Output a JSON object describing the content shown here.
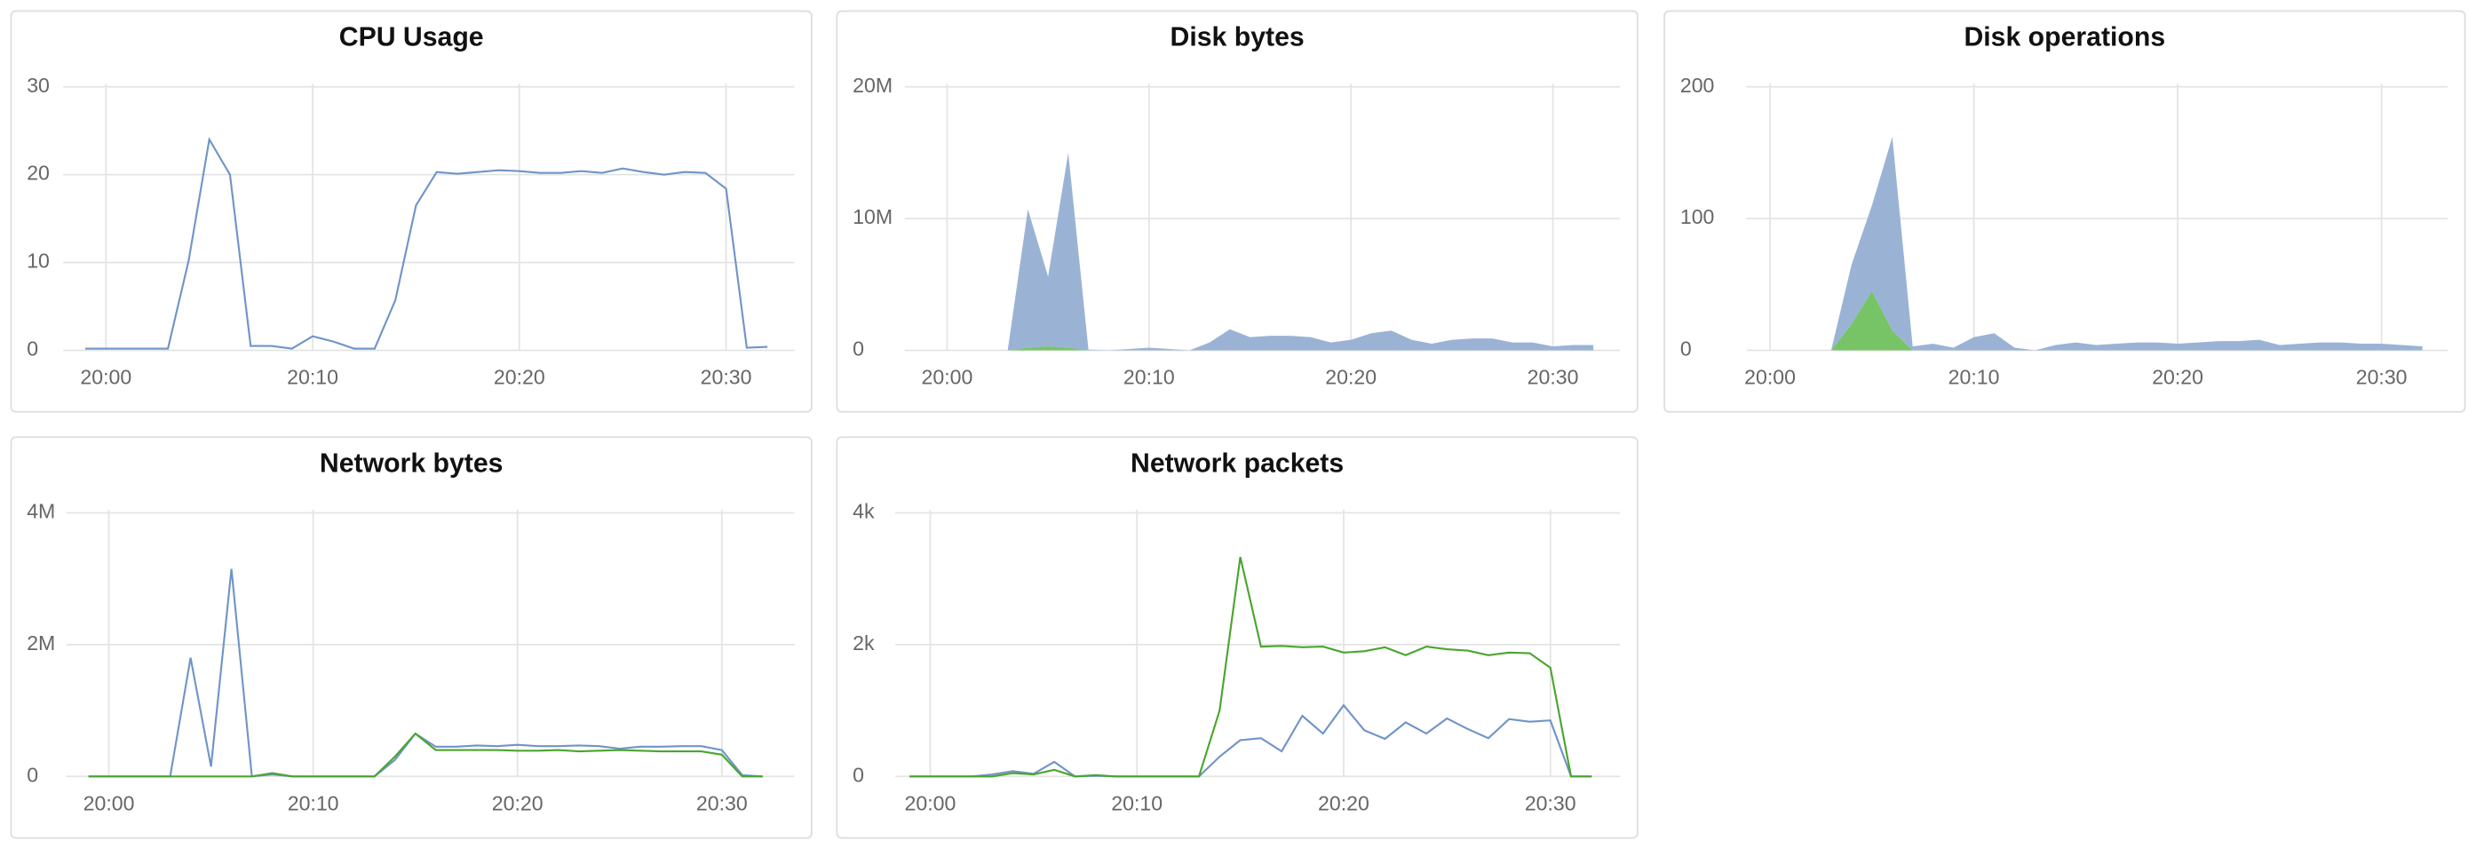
{
  "chart_data": [
    {
      "type": "line",
      "title": "CPU Usage",
      "x": [
        "19:59",
        "20:00",
        "20:01",
        "20:02",
        "20:03",
        "20:04",
        "20:05",
        "20:06",
        "20:07",
        "20:08",
        "20:09",
        "20:10",
        "20:11",
        "20:12",
        "20:13",
        "20:14",
        "20:15",
        "20:16",
        "20:17",
        "20:18",
        "20:19",
        "20:20",
        "20:21",
        "20:22",
        "20:23",
        "20:24",
        "20:25",
        "20:26",
        "20:27",
        "20:28",
        "20:29",
        "20:30",
        "20:31",
        "20:32"
      ],
      "xticks": [
        "20:00",
        "20:10",
        "20:20",
        "20:30"
      ],
      "ylim": [
        0,
        30
      ],
      "yticks": [
        0,
        10,
        20,
        30
      ],
      "grid": true,
      "series": [
        {
          "color": "#7094c8",
          "values": [
            0.2,
            0.2,
            0.2,
            0.2,
            0.2,
            10.2,
            24,
            20,
            0.5,
            0.5,
            0.2,
            1.6,
            1.0,
            0.2,
            0.2,
            5.7,
            16.5,
            20.3,
            20.1,
            20.3,
            20.5,
            20.4,
            20.2,
            20.2,
            20.4,
            20.2,
            20.7,
            20.3,
            20.0,
            20.3,
            20.2,
            18.4,
            0.3,
            0.4
          ]
        }
      ]
    },
    {
      "type": "area",
      "title": "Disk bytes",
      "x": [
        "19:59",
        "20:00",
        "20:01",
        "20:02",
        "20:03",
        "20:04",
        "20:05",
        "20:06",
        "20:07",
        "20:08",
        "20:09",
        "20:10",
        "20:11",
        "20:12",
        "20:13",
        "20:14",
        "20:15",
        "20:16",
        "20:17",
        "20:18",
        "20:19",
        "20:20",
        "20:21",
        "20:22",
        "20:23",
        "20:24",
        "20:25",
        "20:26",
        "20:27",
        "20:28",
        "20:29",
        "20:30",
        "20:31",
        "20:32"
      ],
      "xticks": [
        "20:00",
        "20:10",
        "20:20",
        "20:30"
      ],
      "ylim": [
        0,
        20000000
      ],
      "yticks": [
        0,
        {
          "value": 10000000,
          "label": "10M"
        },
        {
          "value": 20000000,
          "label": "20M"
        }
      ],
      "grid": true,
      "series": [
        {
          "color": "#77c466",
          "values": [
            0,
            0,
            0,
            0,
            0,
            200000,
            300000,
            200000,
            0,
            0,
            0,
            0,
            0,
            0,
            0,
            0,
            0,
            0,
            0,
            0,
            0,
            0,
            0,
            0,
            0,
            0,
            0,
            0,
            0,
            0,
            0,
            0,
            0,
            0
          ]
        },
        {
          "color": "#9ab3d5",
          "values": [
            0,
            0,
            0,
            0,
            0,
            10500000,
            5300000,
            14800000,
            50000,
            0,
            100000,
            200000,
            100000,
            0,
            600000,
            1600000,
            1000000,
            1100000,
            1100000,
            1000000,
            600000,
            800000,
            1300000,
            1500000,
            800000,
            500000,
            800000,
            900000,
            900000,
            600000,
            600000,
            300000,
            400000,
            400000
          ]
        }
      ]
    },
    {
      "type": "area",
      "title": "Disk operations",
      "x": [
        "19:59",
        "20:00",
        "20:01",
        "20:02",
        "20:03",
        "20:04",
        "20:05",
        "20:06",
        "20:07",
        "20:08",
        "20:09",
        "20:10",
        "20:11",
        "20:12",
        "20:13",
        "20:14",
        "20:15",
        "20:16",
        "20:17",
        "20:18",
        "20:19",
        "20:20",
        "20:21",
        "20:22",
        "20:23",
        "20:24",
        "20:25",
        "20:26",
        "20:27",
        "20:28",
        "20:29",
        "20:30",
        "20:31",
        "20:32"
      ],
      "xticks": [
        "20:00",
        "20:10",
        "20:20",
        "20:30"
      ],
      "ylim": [
        0,
        200
      ],
      "yticks": [
        0,
        100,
        200
      ],
      "grid": true,
      "series": [
        {
          "color": "#77c466",
          "values": [
            0,
            0,
            0,
            0,
            0,
            20,
            45,
            15,
            0,
            0,
            0,
            0,
            0,
            0,
            0,
            0,
            0,
            0,
            0,
            0,
            0,
            0,
            0,
            0,
            0,
            0,
            0,
            0,
            0,
            0,
            0,
            0,
            0,
            0
          ]
        },
        {
          "color": "#9ab3d5",
          "values": [
            0,
            0,
            0,
            0,
            0,
            45,
            65,
            147,
            3,
            5,
            2,
            10,
            13,
            2,
            0,
            4,
            6,
            4,
            5,
            6,
            6,
            5,
            6,
            7,
            7,
            8,
            4,
            5,
            6,
            6,
            5,
            5,
            4,
            3
          ]
        }
      ]
    },
    {
      "type": "line",
      "title": "Network bytes",
      "x": [
        "19:59",
        "20:00",
        "20:01",
        "20:02",
        "20:03",
        "20:04",
        "20:05",
        "20:06",
        "20:07",
        "20:08",
        "20:09",
        "20:10",
        "20:11",
        "20:12",
        "20:13",
        "20:14",
        "20:15",
        "20:16",
        "20:17",
        "20:18",
        "20:19",
        "20:20",
        "20:21",
        "20:22",
        "20:23",
        "20:24",
        "20:25",
        "20:26",
        "20:27",
        "20:28",
        "20:29",
        "20:30",
        "20:31",
        "20:32"
      ],
      "xticks": [
        "20:00",
        "20:10",
        "20:20",
        "20:30"
      ],
      "ylim": [
        0,
        4000000
      ],
      "yticks": [
        0,
        {
          "value": 2000000,
          "label": "2M"
        },
        {
          "value": 4000000,
          "label": "4M"
        }
      ],
      "grid": true,
      "series": [
        {
          "color": "#7094c8",
          "values": [
            0,
            0,
            0,
            0,
            0,
            1800000,
            150000,
            3150000,
            0,
            30000,
            0,
            0,
            0,
            0,
            0,
            250000,
            650000,
            450000,
            450000,
            470000,
            460000,
            480000,
            460000,
            460000,
            470000,
            460000,
            420000,
            450000,
            450000,
            460000,
            460000,
            400000,
            20000,
            0
          ]
        },
        {
          "color": "#4aa52e",
          "values": [
            0,
            0,
            0,
            0,
            0,
            0,
            0,
            0,
            0,
            50000,
            0,
            0,
            0,
            0,
            0,
            300000,
            650000,
            400000,
            400000,
            400000,
            400000,
            390000,
            390000,
            400000,
            380000,
            390000,
            400000,
            390000,
            380000,
            380000,
            380000,
            330000,
            0,
            0
          ]
        }
      ]
    },
    {
      "type": "line",
      "title": "Network packets",
      "x": [
        "19:59",
        "20:00",
        "20:01",
        "20:02",
        "20:03",
        "20:04",
        "20:05",
        "20:06",
        "20:07",
        "20:08",
        "20:09",
        "20:10",
        "20:11",
        "20:12",
        "20:13",
        "20:14",
        "20:15",
        "20:16",
        "20:17",
        "20:18",
        "20:19",
        "20:20",
        "20:21",
        "20:22",
        "20:23",
        "20:24",
        "20:25",
        "20:26",
        "20:27",
        "20:28",
        "20:29",
        "20:30",
        "20:31",
        "20:32"
      ],
      "xticks": [
        "20:00",
        "20:10",
        "20:20",
        "20:30"
      ],
      "ylim": [
        0,
        4000
      ],
      "yticks": [
        0,
        {
          "value": 2000,
          "label": "2k"
        },
        {
          "value": 4000,
          "label": "4k"
        }
      ],
      "grid": true,
      "series": [
        {
          "color": "#7094c8",
          "values": [
            0,
            0,
            0,
            0,
            30,
            80,
            40,
            220,
            0,
            10,
            0,
            0,
            0,
            0,
            0,
            300,
            550,
            580,
            380,
            920,
            650,
            1080,
            700,
            570,
            820,
            650,
            880,
            720,
            580,
            870,
            830,
            850,
            0,
            0
          ]
        },
        {
          "color": "#4aa52e",
          "values": [
            0,
            0,
            0,
            0,
            0,
            50,
            30,
            100,
            0,
            20,
            0,
            0,
            0,
            0,
            0,
            1000,
            3330,
            1970,
            1980,
            1960,
            1970,
            1880,
            1900,
            1960,
            1840,
            1970,
            1930,
            1910,
            1840,
            1880,
            1870,
            1650,
            0,
            0
          ]
        }
      ]
    }
  ]
}
